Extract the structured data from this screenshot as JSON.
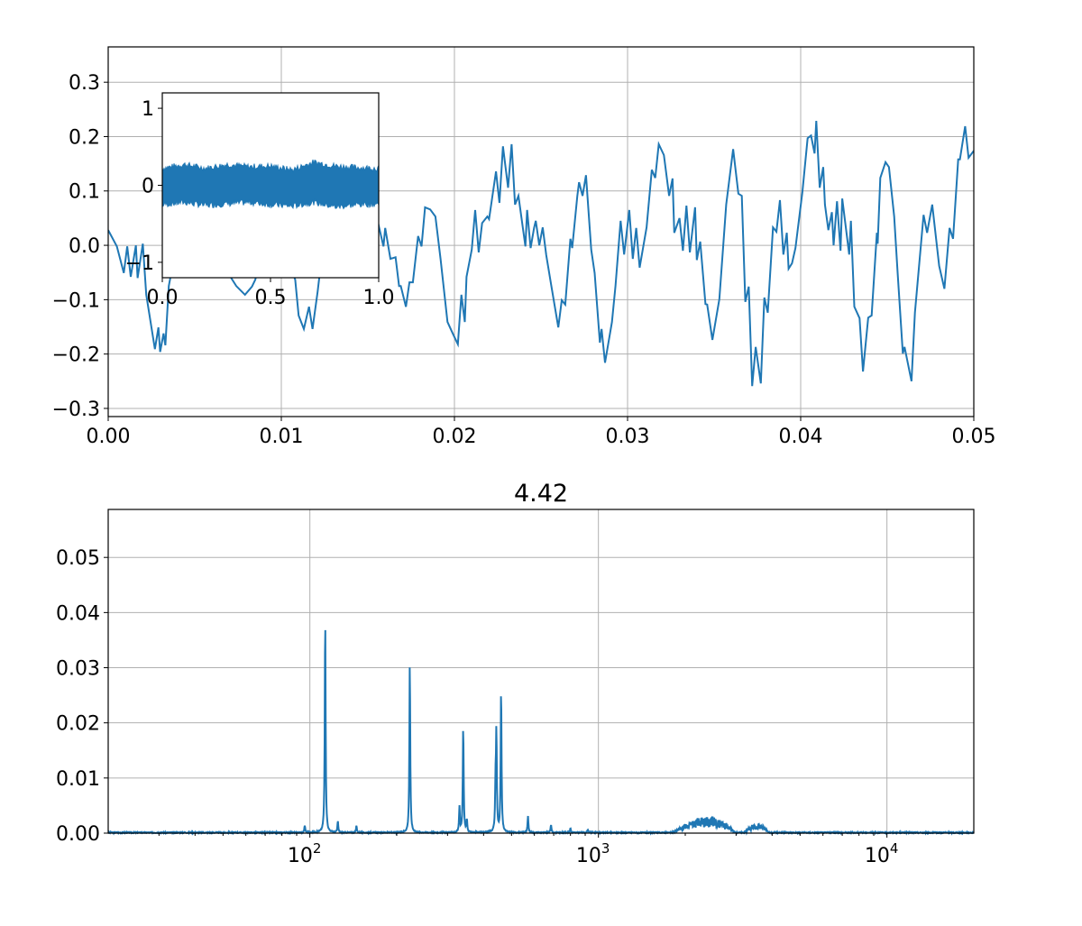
{
  "colors": {
    "line": "#1f77b4",
    "grid": "#b0b0b0",
    "axes": "#000000"
  },
  "chart_data": [
    {
      "type": "line",
      "title": "",
      "xlabel": "",
      "ylabel": "",
      "xlim": [
        0,
        0.05
      ],
      "ylim": [
        -0.315,
        0.365
      ],
      "grid": true,
      "xticks": [
        {
          "v": 0,
          "label": "0.00"
        },
        {
          "v": 0.01,
          "label": "0.01"
        },
        {
          "v": 0.02,
          "label": "0.02"
        },
        {
          "v": 0.03,
          "label": "0.03"
        },
        {
          "v": 0.04,
          "label": "0.04"
        },
        {
          "v": 0.05,
          "label": "0.05"
        }
      ],
      "yticks": [
        {
          "v": -0.3,
          "label": "−0.3"
        },
        {
          "v": -0.2,
          "label": "−0.2"
        },
        {
          "v": -0.1,
          "label": "−0.1"
        },
        {
          "v": 0,
          "label": "0.0"
        },
        {
          "v": 0.1,
          "label": "0.1"
        },
        {
          "v": 0.2,
          "label": "0.2"
        },
        {
          "v": 0.3,
          "label": "0.3"
        }
      ],
      "x": [
        0,
        0.0005,
        0.0009,
        0.0011,
        0.0013,
        0.0016,
        0.0017,
        0.002,
        0.0022,
        0.0027,
        0.0029,
        0.003,
        0.0032,
        0.0033,
        0.0035,
        0.0036,
        0.0042,
        0.0049,
        0.0057,
        0.0065,
        0.007,
        0.0074,
        0.0079,
        0.0083,
        0.0085,
        0.0091,
        0.0099,
        0.0104,
        0.0108,
        0.011,
        0.0113,
        0.0116,
        0.0118,
        0.0121,
        0.0122,
        0.013,
        0.0138,
        0.0146,
        0.0152,
        0.0156,
        0.0159,
        0.016,
        0.0163,
        0.0166,
        0.0168,
        0.0169,
        0.0172,
        0.0174,
        0.0176,
        0.0179,
        0.0181,
        0.0183,
        0.0186,
        0.0189,
        0.0192,
        0.0196,
        0.0199,
        0.0202,
        0.0204,
        0.0206,
        0.0207,
        0.021,
        0.0212,
        0.0214,
        0.0216,
        0.0219,
        0.022,
        0.0224,
        0.0226,
        0.0228,
        0.0231,
        0.0233,
        0.0235,
        0.0237,
        0.0241,
        0.0242,
        0.0244,
        0.0246,
        0.0247,
        0.0249,
        0.0251,
        0.0253,
        0.0256,
        0.026,
        0.0262,
        0.0264,
        0.0267,
        0.0268,
        0.0271,
        0.0272,
        0.0274,
        0.0276,
        0.0279,
        0.0281,
        0.0284,
        0.0285,
        0.0287,
        0.0291,
        0.0293,
        0.0296,
        0.0298,
        0.0301,
        0.0303,
        0.0305,
        0.0307,
        0.0311,
        0.0314,
        0.0316,
        0.0318,
        0.0321,
        0.0324,
        0.0326,
        0.0327,
        0.033,
        0.0332,
        0.0334,
        0.0336,
        0.0339,
        0.034,
        0.0342,
        0.0345,
        0.0346,
        0.0349,
        0.0353,
        0.0357,
        0.0361,
        0.0364,
        0.0366,
        0.0368,
        0.037,
        0.0372,
        0.0374,
        0.0377,
        0.0379,
        0.0381,
        0.0384,
        0.0386,
        0.0388,
        0.039,
        0.0392,
        0.0393,
        0.0395,
        0.0397,
        0.0401,
        0.0404,
        0.0406,
        0.0408,
        0.0409,
        0.0411,
        0.0413,
        0.0414,
        0.0416,
        0.0418,
        0.0419,
        0.0421,
        0.0423,
        0.0424,
        0.0428,
        0.0429,
        0.0431,
        0.0434,
        0.0436,
        0.0439,
        0.0441,
        0.0444,
        0.04445,
        0.0446,
        0.0449,
        0.0451,
        0.0454,
        0.0456,
        0.0459,
        0.046,
        0.0464,
        0.0466,
        0.0471,
        0.0473,
        0.0476,
        0.048,
        0.0483,
        0.0486,
        0.0488,
        0.0491,
        0.0492,
        0.0495,
        0.0497,
        0.05
      ],
      "y": [
        0.028,
        -0.002,
        -0.051,
        -0.002,
        -0.058,
        0,
        -0.06,
        0.003,
        -0.091,
        -0.191,
        -0.151,
        -0.196,
        -0.162,
        -0.184,
        -0.075,
        -0.058,
        0.036,
        0.119,
        0.053,
        -0.03,
        -0.055,
        -0.075,
        -0.091,
        -0.076,
        -0.063,
        0.036,
        0.086,
        -0.03,
        -0.063,
        -0.129,
        -0.154,
        -0.113,
        -0.154,
        -0.085,
        -0.058,
        0.036,
        0.119,
        0.07,
        0.045,
        0.04,
        -0.002,
        0.032,
        -0.025,
        -0.022,
        -0.075,
        -0.075,
        -0.113,
        -0.068,
        -0.068,
        0.017,
        -0.002,
        0.07,
        0.066,
        0.053,
        -0.025,
        -0.141,
        -0.162,
        -0.182,
        -0.091,
        -0.141,
        -0.058,
        -0.008,
        0.065,
        -0.013,
        0.041,
        0.053,
        0.048,
        0.136,
        0.078,
        0.182,
        0.106,
        0.186,
        0.075,
        0.091,
        -0.002,
        0.065,
        -0.005,
        0.032,
        0.045,
        0,
        0.033,
        -0.018,
        -0.075,
        -0.151,
        -0.101,
        -0.109,
        0.012,
        -0.005,
        0.091,
        0.116,
        0.091,
        0.129,
        -0.008,
        -0.051,
        -0.179,
        -0.154,
        -0.216,
        -0.141,
        -0.075,
        0.045,
        -0.017,
        0.065,
        -0.025,
        0.032,
        -0.041,
        0.033,
        0.139,
        0.124,
        0.186,
        0.166,
        0.091,
        0.123,
        0.023,
        0.05,
        -0.01,
        0.073,
        -0.013,
        0.07,
        -0.027,
        0.007,
        -0.108,
        -0.109,
        -0.174,
        -0.099,
        0.075,
        0.177,
        0.095,
        0.091,
        -0.104,
        -0.076,
        -0.259,
        -0.187,
        -0.254,
        -0.096,
        -0.124,
        0.033,
        0.025,
        0.083,
        -0.017,
        0.023,
        -0.043,
        -0.033,
        -0.005,
        0.098,
        0.197,
        0.202,
        0.169,
        0.229,
        0.106,
        0.144,
        0.075,
        0.028,
        0.061,
        0,
        0.081,
        -0.01,
        0.086,
        -0.017,
        0.045,
        -0.113,
        -0.134,
        -0.232,
        -0.133,
        -0.129,
        0.023,
        0.003,
        0.124,
        0.153,
        0.144,
        0.053,
        -0.05,
        -0.199,
        -0.187,
        -0.25,
        -0.124,
        0.056,
        0.023,
        0.075,
        -0.038,
        -0.08,
        0.032,
        0.012,
        0.158,
        0.158,
        0.219,
        0.161,
        0.174
      ]
    },
    {
      "type": "area",
      "title": "",
      "xlim": [
        0,
        1
      ],
      "ylim": [
        -1.2,
        1.2
      ],
      "grid": false,
      "xticks": [
        {
          "v": 0,
          "label": "0.0"
        },
        {
          "v": 0.5,
          "label": "0.5"
        },
        {
          "v": 1,
          "label": "1.0"
        }
      ],
      "yticks": [
        {
          "v": -1,
          "label": "−1"
        },
        {
          "v": 0,
          "label": "0"
        },
        {
          "v": 1,
          "label": "1"
        }
      ],
      "envelope": {
        "x": [
          0,
          0.1,
          0.2,
          0.3,
          0.4,
          0.5,
          0.6,
          0.7,
          0.8,
          0.9,
          1.0
        ],
        "upper": [
          0.22,
          0.27,
          0.22,
          0.27,
          0.24,
          0.25,
          0.2,
          0.3,
          0.25,
          0.23,
          0.22
        ],
        "lower": [
          -0.25,
          -0.22,
          -0.26,
          -0.24,
          -0.22,
          -0.25,
          -0.27,
          -0.22,
          -0.28,
          -0.25,
          -0.24
        ]
      }
    },
    {
      "type": "line",
      "title": "4.42",
      "xscale": "log",
      "xlim": [
        20,
        20000
      ],
      "ylim": [
        0,
        0.0587
      ],
      "grid": true,
      "xticks": [
        {
          "v": 100,
          "base": "10",
          "exp": "2"
        },
        {
          "v": 1000,
          "base": "10",
          "exp": "3"
        },
        {
          "v": 10000,
          "base": "10",
          "exp": "4"
        }
      ],
      "yticks": [
        {
          "v": 0,
          "label": "0.00"
        },
        {
          "v": 0.01,
          "label": "0.01"
        },
        {
          "v": 0.02,
          "label": "0.02"
        },
        {
          "v": 0.03,
          "label": "0.03"
        },
        {
          "v": 0.04,
          "label": "0.04"
        },
        {
          "v": 0.05,
          "label": "0.05"
        }
      ],
      "peaks": [
        {
          "f": 113,
          "a": 0.0392
        },
        {
          "f": 222,
          "a": 0.031
        },
        {
          "f": 340,
          "a": 0.0194
        },
        {
          "f": 443,
          "a": 0.0175
        },
        {
          "f": 460,
          "a": 0.0263
        },
        {
          "f": 96,
          "a": 0.0013
        },
        {
          "f": 125,
          "a": 0.002
        },
        {
          "f": 145,
          "a": 0.0012
        },
        {
          "f": 330,
          "a": 0.0045
        },
        {
          "f": 350,
          "a": 0.0022
        },
        {
          "f": 440,
          "a": 0.0075
        },
        {
          "f": 570,
          "a": 0.003
        },
        {
          "f": 685,
          "a": 0.0015
        },
        {
          "f": 800,
          "a": 0.0008
        },
        {
          "f": 920,
          "a": 0.0006
        }
      ],
      "bands": [
        {
          "from": 1800,
          "to": 3000,
          "level": 0.0025
        },
        {
          "from": 3200,
          "to": 3900,
          "level": 0.0014
        }
      ]
    }
  ]
}
